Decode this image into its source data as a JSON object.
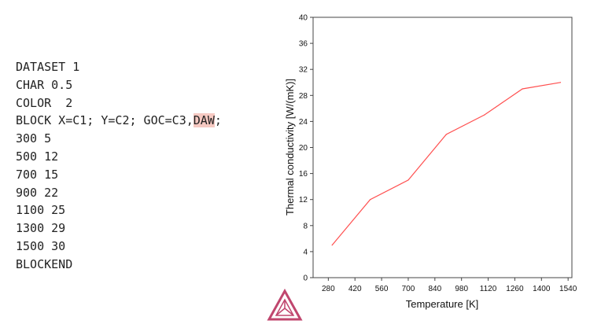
{
  "macro": {
    "lines": [
      "DATASET 1",
      "CHAR 0.5",
      "COLOR  2",
      "300 5",
      "500 12",
      "700 15",
      "900 22",
      "1100 25",
      "1300 29",
      "1500 30",
      "BLOCKEND"
    ],
    "block_line": {
      "before": "BLOCK X=C1; Y=C2; GOC=C3,",
      "highlight": "DAW",
      "after": ";"
    },
    "highlight_color": "#f6c9c2"
  },
  "chart_data": {
    "type": "line",
    "xlabel": "Temperature [K]",
    "ylabel": "Thermal conductivity [W/(mK)]",
    "xlim": [
      200,
      1560
    ],
    "ylim": [
      0,
      40
    ],
    "xticks": [
      280,
      420,
      560,
      700,
      840,
      980,
      1120,
      1260,
      1400,
      1540
    ],
    "yticks": [
      0,
      4,
      8,
      12,
      16,
      20,
      24,
      28,
      32,
      36,
      40
    ],
    "grid": false,
    "series": [
      {
        "color": "#ff5050",
        "x": [
          300,
          500,
          700,
          900,
          1100,
          1300,
          1500
        ],
        "y": [
          5,
          12,
          15,
          22,
          25,
          29,
          30
        ]
      }
    ]
  },
  "logo": {
    "icon": "thermo-calc-logo-icon",
    "color": "#c0466e"
  }
}
